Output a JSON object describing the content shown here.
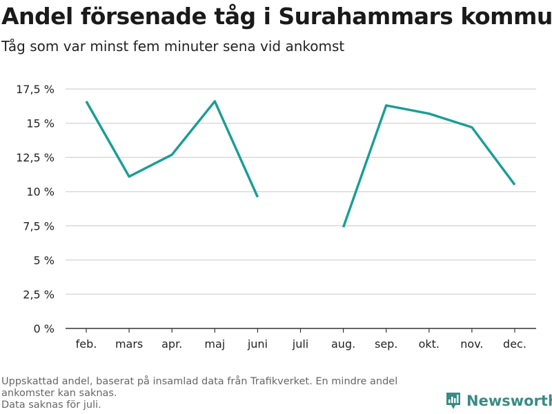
{
  "title": "Andel försenade tåg i Surahammars kommun",
  "subtitle": "Tåg som var minst fem minuter sena vid ankomst",
  "footnote": [
    "Uppskattad andel, baserat på insamlad data från Trafikverket. En mindre andel ankomster kan saknas.",
    "Data saknas för juli."
  ],
  "brand": {
    "name": "Newsworthy",
    "logo_icon": "newsworthy-bar-chart-icon"
  },
  "colors": {
    "line": "#1a9e95",
    "grid": "#d9d9d9",
    "axis": "#333333",
    "brand": "#3a8b86"
  },
  "chart_data": {
    "type": "line",
    "categories": [
      "feb.",
      "mars",
      "apr.",
      "maj",
      "juni",
      "juli",
      "aug.",
      "sep.",
      "okt.",
      "nov.",
      "dec."
    ],
    "series": [
      {
        "values": [
          16.6,
          11.1,
          12.7,
          16.6,
          9.6,
          null,
          7.4,
          16.3,
          15.7,
          14.7,
          10.5
        ]
      }
    ],
    "yticks": [
      0,
      2.5,
      5,
      7.5,
      10,
      12.5,
      15,
      17.5
    ],
    "ytick_labels": [
      "0 %",
      "2,5 %",
      "5 %",
      "7,5 %",
      "10 %",
      "12,5 %",
      "15 %",
      "17,5 %"
    ],
    "ylim": [
      0,
      17.5
    ],
    "grid": true,
    "legend": "none"
  }
}
